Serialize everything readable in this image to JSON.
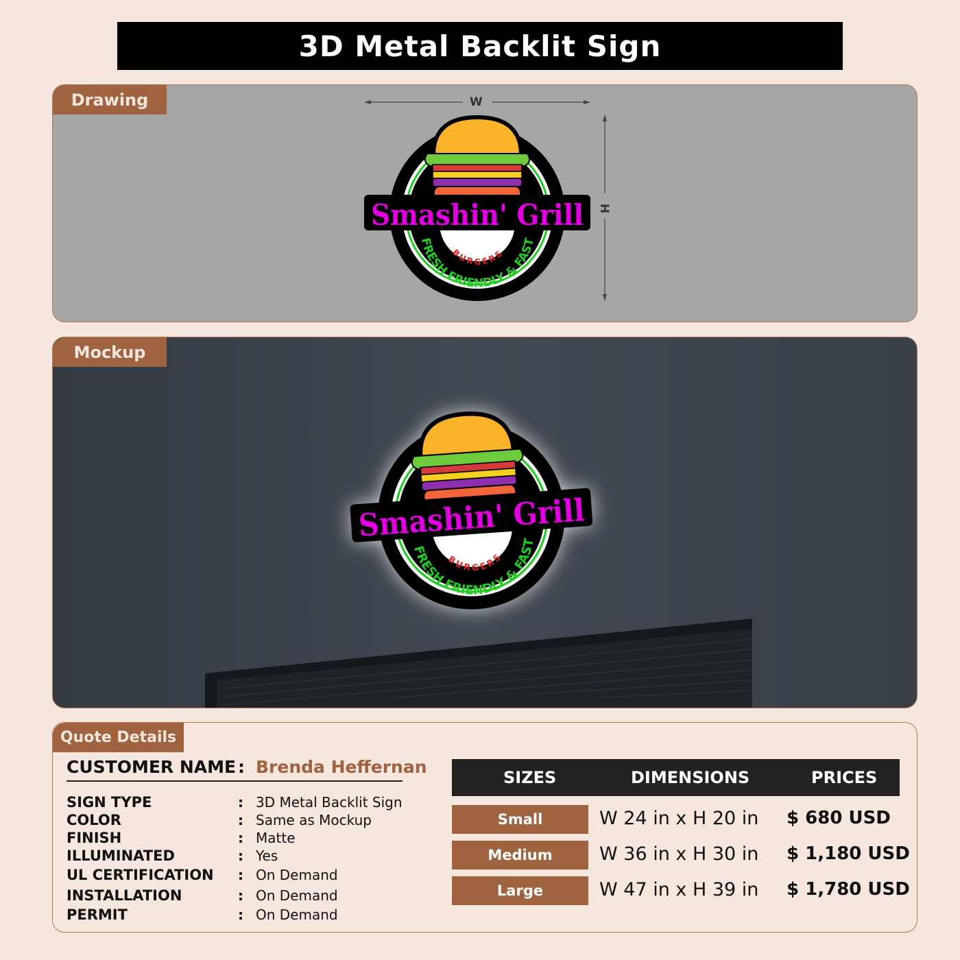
{
  "title": "3D Metal Backlit Sign",
  "drawing": {
    "tab": "Drawing",
    "width_label": "W",
    "height_label": "H"
  },
  "mockup": {
    "tab": "Mockup"
  },
  "logo": {
    "name": "Smashin' Grill",
    "sub": "BURGERS",
    "tagline": "FRESH FRIENDLY & FAST"
  },
  "quote": {
    "tab": "Quote Details",
    "customer_label": "CUSTOMER NAME",
    "customer_name": "Brenda Heffernan",
    "specs": [
      {
        "label": "SIGN TYPE",
        "value": "3D Metal Backlit Sign"
      },
      {
        "label": "COLOR",
        "value": "Same as Mockup"
      },
      {
        "label": "FINISH",
        "value": "Matte"
      },
      {
        "label": "ILLUMINATED",
        "value": "Yes"
      },
      {
        "label": "UL CERTIFICATION",
        "value": "On Demand"
      },
      {
        "label": "INSTALLATION",
        "value": "On Demand"
      },
      {
        "label": "PERMIT",
        "value": "On Demand"
      }
    ],
    "table": {
      "headers": [
        "SIZES",
        "DIMENSIONS",
        "PRICES"
      ],
      "rows": [
        {
          "size": "Small",
          "dimensions": "W 24 in x H 20 in",
          "price": "$ 680 USD"
        },
        {
          "size": "Medium",
          "dimensions": "W 36 in x H 30 in",
          "price": "$ 1,180 USD"
        },
        {
          "size": "Large",
          "dimensions": "W 47 in x H 39 in",
          "price": "$ 1,780 USD"
        }
      ]
    }
  },
  "colors": {
    "accent": "#a0633f",
    "magenta": "#e000e0",
    "green": "#22cc22",
    "red": "#e02020"
  }
}
